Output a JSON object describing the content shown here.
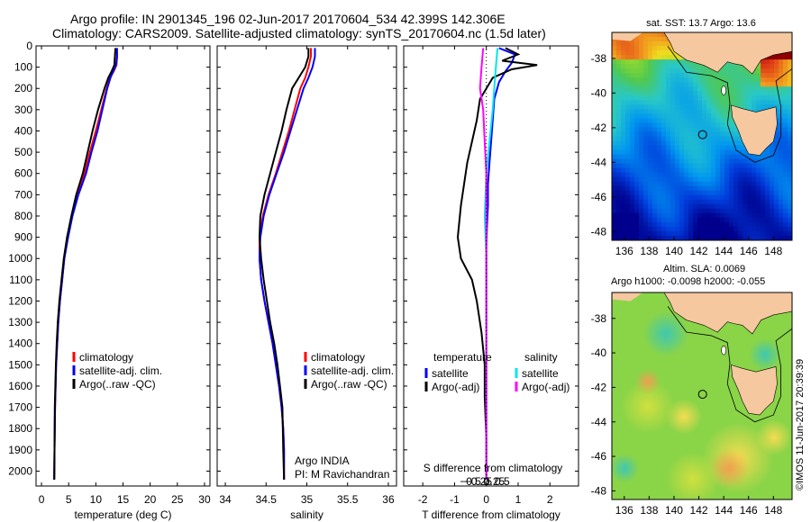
{
  "header": {
    "line1": "Argo profile: IN 2901345_196 02-Jun-2017 20170604_534 42.399S 142.306E",
    "line2": "Climatology: CARS2009. Satellite-adjusted climatology: synTS_20170604.nc (1.5d later)"
  },
  "stamp": "©IMOS 11-Jun-2017 20:39:39",
  "colors": {
    "climatology": "#ff0000",
    "satellite": "#0000ff",
    "argo": "#000000",
    "sat_salinity": "#00e5ee",
    "argo_salinity": "#ff00ff",
    "land": "#f5c8a0"
  },
  "chart_data": [
    {
      "type": "line",
      "xlabel": "temperature (deg C)",
      "xlim": [
        -1,
        31
      ],
      "xticks": [
        0,
        5,
        10,
        15,
        20,
        25,
        30
      ],
      "ylim": [
        0,
        2070
      ],
      "yticks": [
        0,
        100,
        200,
        300,
        400,
        500,
        600,
        700,
        800,
        900,
        1000,
        1100,
        1200,
        1300,
        1400,
        1500,
        1600,
        1700,
        1800,
        1900,
        2000
      ],
      "legend": [
        "climatology",
        "satellite-adj. clim.",
        "Argo(..raw -QC)"
      ],
      "series": [
        {
          "name": "climatology",
          "color": "#ff0000",
          "x": [
            13.8,
            13.9,
            13.8,
            13.3,
            12.6,
            12.0,
            11.0,
            10.0,
            8.9,
            7.9,
            6.6,
            5.6,
            4.8,
            4.2,
            3.8,
            3.4,
            3.1,
            2.9,
            2.7,
            2.6,
            2.5,
            2.4,
            2.35
          ],
          "y": [
            10,
            50,
            90,
            120,
            150,
            200,
            300,
            400,
            500,
            600,
            700,
            800,
            900,
            1000,
            1100,
            1200,
            1300,
            1400,
            1500,
            1600,
            1700,
            1900,
            2040
          ]
        },
        {
          "name": "satellite-adj. clim.",
          "color": "#0000ff",
          "x": [
            13.9,
            13.9,
            13.7,
            13.2,
            12.7,
            12.1,
            11.2,
            10.3,
            9.2,
            8.2,
            6.8,
            5.7,
            4.9,
            4.2,
            3.8,
            3.4,
            3.1,
            2.9,
            2.7,
            2.6,
            2.5,
            2.4,
            2.35
          ],
          "y": [
            10,
            50,
            90,
            120,
            150,
            200,
            300,
            400,
            500,
            600,
            700,
            800,
            900,
            1000,
            1100,
            1200,
            1300,
            1400,
            1500,
            1600,
            1700,
            1900,
            2040
          ]
        },
        {
          "name": "Argo(..raw -QC)",
          "color": "#000000",
          "x": [
            13.6,
            13.5,
            13.4,
            12.9,
            12.3,
            11.6,
            10.4,
            9.4,
            8.5,
            7.6,
            6.4,
            5.5,
            4.7,
            4.1,
            3.7,
            3.3,
            3.0,
            2.8,
            2.65,
            2.55,
            2.45,
            2.4,
            2.35
          ],
          "y": [
            10,
            50,
            90,
            120,
            150,
            200,
            300,
            400,
            500,
            600,
            700,
            800,
            900,
            1000,
            1100,
            1200,
            1300,
            1400,
            1500,
            1600,
            1700,
            1900,
            2040
          ]
        }
      ]
    },
    {
      "type": "line",
      "xlabel": "salinity",
      "xlim": [
        33.9,
        36.1
      ],
      "xticks": [
        34,
        34.5,
        35,
        35.5,
        36
      ],
      "xticklabels": [
        "34",
        "34.5",
        "35",
        "35.5",
        "36"
      ],
      "ylim": [
        0,
        2070
      ],
      "legend": [
        "climatology",
        "satellite-adj. clim.",
        "Argo(..raw -QC)"
      ],
      "annotation": [
        "Argo INDIA",
        "PI: M Ravichandran"
      ],
      "series": [
        {
          "name": "climatology",
          "color": "#ff0000",
          "x": [
            35.05,
            35.05,
            35.02,
            34.98,
            34.92,
            34.85,
            34.78,
            34.7,
            34.62,
            34.53,
            34.46,
            34.42,
            34.42,
            34.44,
            34.48,
            34.53,
            34.58,
            34.62,
            34.66,
            34.69,
            34.71,
            34.72,
            34.72
          ],
          "y": [
            10,
            50,
            100,
            150,
            200,
            300,
            400,
            500,
            600,
            700,
            800,
            900,
            1000,
            1100,
            1200,
            1300,
            1400,
            1500,
            1600,
            1700,
            1800,
            1900,
            2040
          ]
        },
        {
          "name": "satellite-adj. clim.",
          "color": "#0000ff",
          "x": [
            35.1,
            35.1,
            35.07,
            35.02,
            34.96,
            34.88,
            34.8,
            34.72,
            34.63,
            34.54,
            34.47,
            34.43,
            34.42,
            34.44,
            34.48,
            34.53,
            34.58,
            34.62,
            34.66,
            34.69,
            34.71,
            34.72,
            34.72
          ],
          "y": [
            10,
            50,
            100,
            150,
            200,
            300,
            400,
            500,
            600,
            700,
            800,
            900,
            1000,
            1100,
            1200,
            1300,
            1400,
            1500,
            1600,
            1700,
            1800,
            1900,
            2040
          ]
        },
        {
          "name": "Argo(..raw -QC)",
          "color": "#000000",
          "x": [
            35.02,
            35.02,
            34.98,
            34.9,
            34.82,
            34.75,
            34.69,
            34.62,
            34.55,
            34.48,
            34.43,
            34.42,
            34.44,
            34.47,
            34.51,
            34.55,
            34.6,
            34.64,
            34.67,
            34.7,
            34.71,
            34.72
          ],
          "y": [
            10,
            50,
            100,
            150,
            200,
            300,
            400,
            500,
            600,
            700,
            800,
            900,
            1000,
            1100,
            1200,
            1300,
            1400,
            1500,
            1600,
            1700,
            1900,
            2040
          ]
        }
      ]
    },
    {
      "type": "line",
      "xlabel": "T difference from climatology",
      "xlabel2": "S difference from climatology",
      "xlim": [
        -2.6,
        2.9
      ],
      "xticks": [
        -2,
        -1,
        0,
        1,
        2
      ],
      "xticks2": [
        -0.5,
        -0.25,
        0,
        0.25,
        0.5
      ],
      "ylim": [
        0,
        2070
      ],
      "legend_titles": [
        "temperature",
        "salinity"
      ],
      "legend": [
        "satellite",
        "Argo(-adj)",
        "satellite",
        "Argo(-adj)"
      ],
      "series": [
        {
          "name": "satellite",
          "group": "temperature",
          "color": "#0000ff",
          "x": [
            0.4,
            0.9,
            0.8,
            0.6,
            0.4,
            0.25,
            0.2,
            0.15,
            0.1,
            0.05,
            0.05,
            0.02,
            0.0,
            0.0,
            0.0,
            0.0,
            0.0,
            0.0,
            0.0,
            0.0,
            0.0
          ],
          "y": [
            10,
            40,
            80,
            120,
            170,
            250,
            350,
            450,
            550,
            650,
            750,
            850,
            950,
            1050,
            1150,
            1250,
            1400,
            1550,
            1700,
            1850,
            2040
          ]
        },
        {
          "name": "Argo(-adj)",
          "group": "temperature",
          "color": "#000000",
          "x": [
            0.6,
            1.0,
            0.5,
            1.6,
            0.8,
            0.2,
            -0.2,
            -0.3,
            -0.45,
            -0.6,
            -0.7,
            -0.8,
            -0.9,
            -0.8,
            -0.45,
            -0.3,
            -0.15,
            -0.05,
            -0.05,
            0.0,
            0.0
          ],
          "y": [
            10,
            40,
            70,
            90,
            110,
            150,
            250,
            350,
            450,
            550,
            650,
            750,
            900,
            1000,
            1100,
            1200,
            1350,
            1500,
            1650,
            1850,
            2040
          ]
        },
        {
          "name": "satellite",
          "group": "salinity",
          "color": "#00e5ee",
          "x": [
            0.35,
            0.3,
            0.25,
            0.2,
            0.1,
            0.0,
            -0.05,
            0.0,
            0.0,
            0.0,
            0.0,
            0.0,
            0.0
          ],
          "y": [
            10,
            100,
            200,
            300,
            450,
            600,
            800,
            1000,
            1200,
            1400,
            1600,
            1800,
            2040
          ]
        },
        {
          "name": "Argo(-adj)",
          "group": "salinity",
          "color": "#ff00ff",
          "x": [
            -0.1,
            -0.15,
            -0.2,
            -0.1,
            -0.05,
            0.0,
            0.0,
            0.0,
            0.0,
            0.0,
            0.0,
            0.0,
            0.0
          ],
          "y": [
            10,
            100,
            200,
            300,
            450,
            600,
            800,
            1000,
            1200,
            1400,
            1600,
            1800,
            2040
          ]
        }
      ]
    },
    {
      "type": "heatmap",
      "title": "sat. SST: 13.7 Argo: 13.6",
      "xlim": [
        135,
        149.5
      ],
      "ylim": [
        -48.5,
        -36.5
      ],
      "xticks": [
        136,
        138,
        140,
        142,
        144,
        146,
        148
      ],
      "yticks": [
        -38,
        -40,
        -42,
        -44,
        -46,
        -48
      ],
      "marker": {
        "lon": 142.3,
        "lat": -42.4
      }
    },
    {
      "type": "heatmap",
      "title": "Altim. SLA: 0.0069",
      "subtitle": "Argo h1000: -0.0098 h2000: -0.055",
      "xlim": [
        135,
        149.5
      ],
      "ylim": [
        -48.5,
        -36.5
      ],
      "xticks": [
        136,
        138,
        140,
        142,
        144,
        146,
        148
      ],
      "yticks": [
        -38,
        -40,
        -42,
        -44,
        -46,
        -48
      ],
      "marker": {
        "lon": 142.3,
        "lat": -42.4
      }
    }
  ]
}
